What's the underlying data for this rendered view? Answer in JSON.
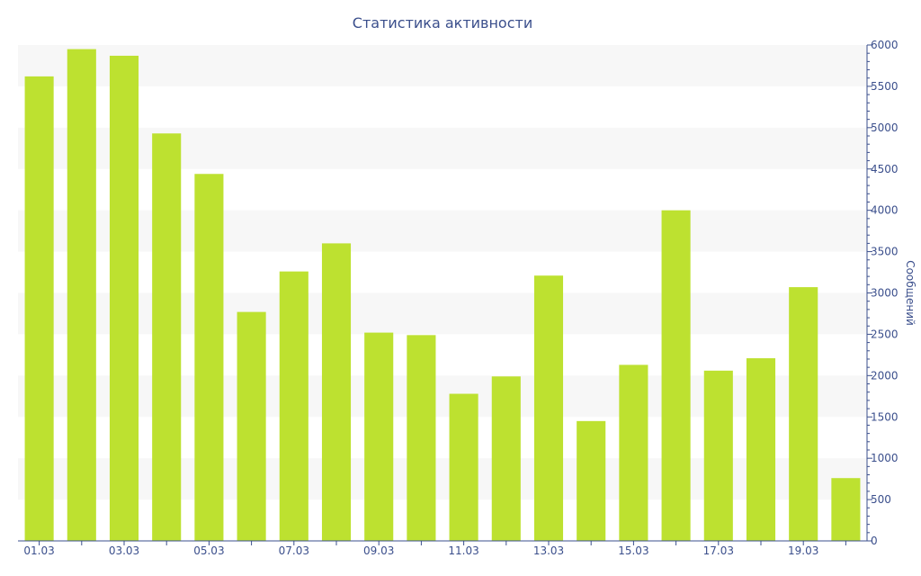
{
  "chart_data": {
    "type": "bar",
    "title": "Статистика активности",
    "xlabel": "",
    "ylabel": "Сообщений",
    "y_axis_side": "right",
    "ylim": [
      0,
      6000
    ],
    "y_ticks": [
      0,
      500,
      1000,
      1500,
      2000,
      2500,
      3000,
      3500,
      4000,
      4500,
      5000,
      5500,
      6000
    ],
    "categories": [
      "01.03",
      "02.03",
      "03.03",
      "04.03",
      "05.03",
      "06.03",
      "07.03",
      "08.03",
      "09.03",
      "10.03",
      "11.03",
      "12.03",
      "13.03",
      "14.03",
      "15.03",
      "16.03",
      "17.03",
      "18.03",
      "19.03",
      "20.03"
    ],
    "x_tick_labels": [
      "01.03",
      "03.03",
      "05.03",
      "07.03",
      "09.03",
      "11.03",
      "13.03",
      "15.03",
      "17.03",
      "19.03"
    ],
    "values": [
      5620,
      5950,
      5870,
      4930,
      4440,
      2770,
      3260,
      3600,
      2520,
      2490,
      1780,
      1990,
      3210,
      1450,
      2130,
      4000,
      2060,
      2210,
      3070,
      760
    ],
    "grid": "horizontal alternating bands",
    "legend": "none"
  },
  "colors": {
    "bar": "#bde130",
    "band": "#f7f7f7",
    "axis": "#3b4f8c",
    "text": "#3b4f8c"
  }
}
